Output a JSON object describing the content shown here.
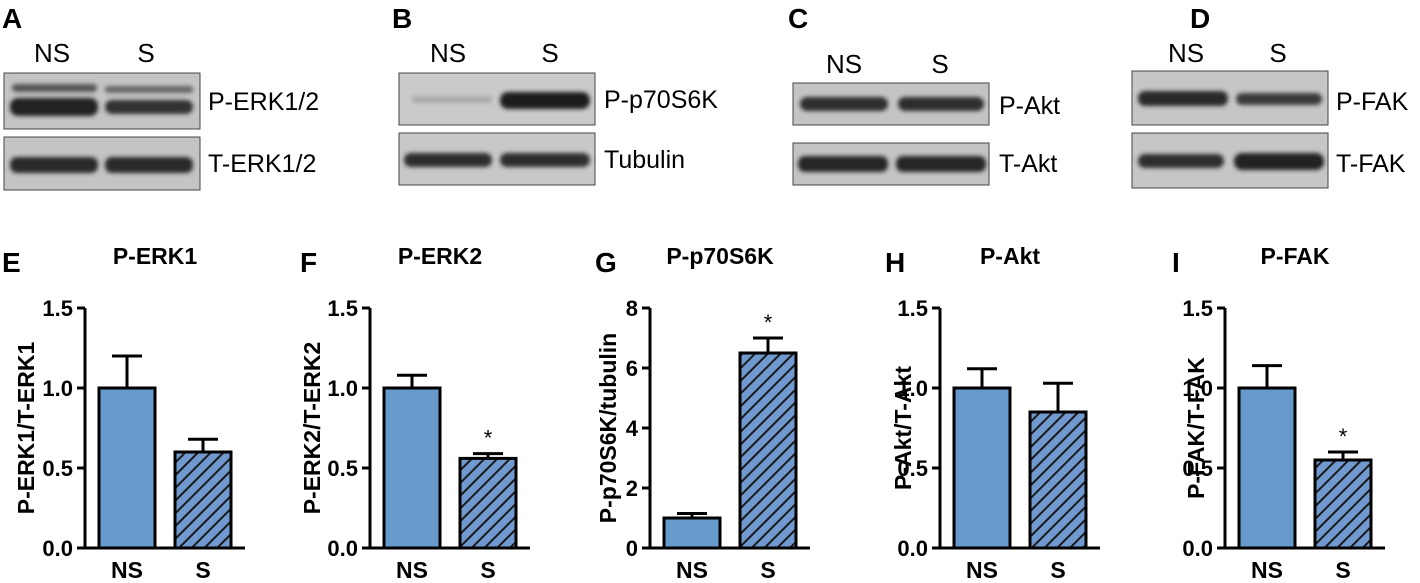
{
  "colors": {
    "bar_ns": "#6699cc",
    "bar_s_fill": "#6f99cf",
    "hatch": "#222222",
    "axis": "#000000",
    "blot_bg": "#c8c8c8",
    "band": "#2a2a2a"
  },
  "blots": [
    {
      "letter": "A",
      "lanes": [
        "NS",
        "S"
      ],
      "rows": [
        "P-ERK1/2",
        "T-ERK1/2"
      ]
    },
    {
      "letter": "B",
      "lanes": [
        "NS",
        "S"
      ],
      "rows": [
        "P-p70S6K",
        "Tubulin"
      ]
    },
    {
      "letter": "C",
      "lanes": [
        "NS",
        "S"
      ],
      "rows": [
        "P-Akt",
        "T-Akt"
      ]
    },
    {
      "letter": "D",
      "lanes": [
        "NS",
        "S"
      ],
      "rows": [
        "P-FAK",
        "T-FAK"
      ]
    }
  ],
  "chart_data": [
    {
      "type": "bar",
      "panel": "E",
      "title": "P-ERK1",
      "ylabel": "P-ERK1/T-ERK1",
      "categories": [
        "NS",
        "S"
      ],
      "values": [
        1.0,
        0.6
      ],
      "errors": [
        0.2,
        0.08
      ],
      "ylim": [
        0,
        1.5
      ],
      "yticks": [
        "0.0",
        "0.5",
        "1.0",
        "1.5"
      ],
      "significance": [
        "",
        ""
      ]
    },
    {
      "type": "bar",
      "panel": "F",
      "title": "P-ERK2",
      "ylabel": "P-ERK2/T-ERK2",
      "categories": [
        "NS",
        "S"
      ],
      "values": [
        1.0,
        0.56
      ],
      "errors": [
        0.08,
        0.03
      ],
      "ylim": [
        0,
        1.5
      ],
      "yticks": [
        "0.0",
        "0.5",
        "1.0",
        "1.5"
      ],
      "significance": [
        "",
        "*"
      ]
    },
    {
      "type": "bar",
      "panel": "G",
      "title": "P-p70S6K",
      "ylabel": "P-p70S6K/tubulin",
      "categories": [
        "NS",
        "S"
      ],
      "values": [
        1.0,
        6.5
      ],
      "errors": [
        0.15,
        0.5
      ],
      "ylim": [
        0,
        8
      ],
      "yticks": [
        "0",
        "2",
        "4",
        "6",
        "8"
      ],
      "significance": [
        "",
        "*"
      ]
    },
    {
      "type": "bar",
      "panel": "H",
      "title": "P-Akt",
      "ylabel": "P-Akt/T-Akt",
      "categories": [
        "NS",
        "S"
      ],
      "values": [
        1.0,
        0.85
      ],
      "errors": [
        0.12,
        0.18
      ],
      "ylim": [
        0,
        1.5
      ],
      "yticks": [
        "0.0",
        "0.5",
        "1.0",
        "1.5"
      ],
      "significance": [
        "",
        ""
      ]
    },
    {
      "type": "bar",
      "panel": "I",
      "title": "P-FAK",
      "ylabel": "P-FAK/T-FAK",
      "categories": [
        "NS",
        "S"
      ],
      "values": [
        1.0,
        0.55
      ],
      "errors": [
        0.14,
        0.05
      ],
      "ylim": [
        0,
        1.5
      ],
      "yticks": [
        "0.0",
        "0.5",
        "1.0",
        "1.5"
      ],
      "significance": [
        "",
        "*"
      ]
    }
  ]
}
